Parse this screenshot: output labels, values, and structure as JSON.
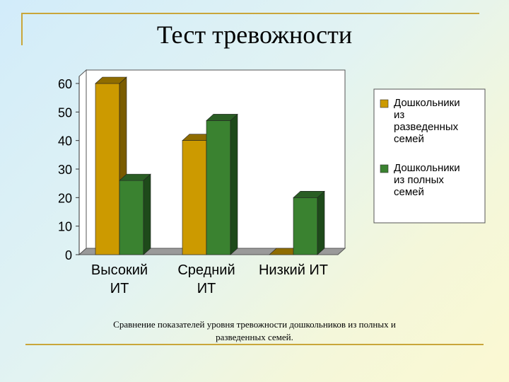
{
  "slide": {
    "title": "Тест тревожности",
    "caption_line1": "Сравнение показателей уровня тревожности дошкольников из полных и",
    "caption_line2": "разведенных семей."
  },
  "chart_data": {
    "type": "bar",
    "style": "3d-clustered",
    "categories": [
      [
        "Высокий",
        "ИТ"
      ],
      [
        "Средний",
        "ИТ"
      ],
      [
        "Низкий ИТ"
      ]
    ],
    "series": [
      {
        "name": [
          "Дошкольники",
          "из",
          "разведенных",
          "семей"
        ],
        "values": [
          60,
          40,
          0
        ],
        "color": "#cc9a00",
        "side_color": "#7a5c00",
        "top_color": "#8f6c00"
      },
      {
        "name": [
          "Дошкольники",
          "из полных",
          "семей"
        ],
        "values": [
          26,
          47,
          20
        ],
        "color": "#3a8230",
        "side_color": "#1e4a1a",
        "top_color": "#2a5e24"
      }
    ],
    "ylim": [
      0,
      60
    ],
    "yticks": [
      "0",
      "10",
      "20",
      "30",
      "40",
      "50",
      "60"
    ],
    "grid": false,
    "legend": "right",
    "title": "",
    "xlabel": "",
    "ylabel": ""
  }
}
